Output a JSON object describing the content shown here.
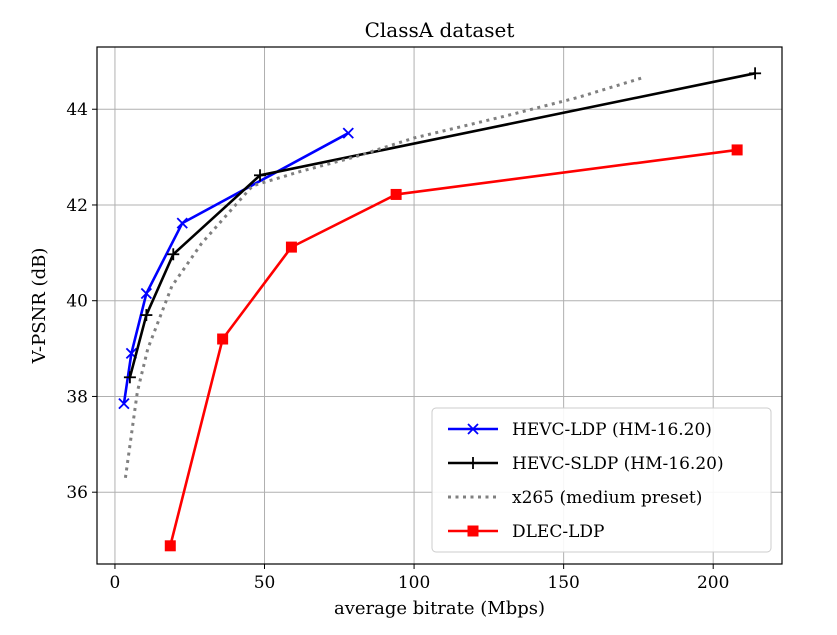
{
  "chart_data": {
    "type": "line",
    "title": "ClassA dataset",
    "xlabel": "average bitrate (Mbps)",
    "ylabel": "V-PSNR (dB)",
    "xlim": [
      -6,
      223
    ],
    "ylim": [
      34.5,
      45.3
    ],
    "xticks": [
      0,
      50,
      100,
      150,
      200
    ],
    "yticks": [
      36,
      38,
      40,
      42,
      44
    ],
    "grid": true,
    "legend_position": "lower-right",
    "series": [
      {
        "name": "HEVC-LDP (HM-16.20)",
        "color": "#0000ff",
        "line_style": "solid",
        "marker": "x",
        "x": [
          3,
          5.5,
          10.5,
          22.5,
          78
        ],
        "y": [
          37.85,
          38.9,
          40.15,
          41.62,
          43.5
        ]
      },
      {
        "name": "HEVC-SLDP (HM-16.20)",
        "color": "#000000",
        "line_style": "solid",
        "marker": "+",
        "x": [
          5,
          10.5,
          19.5,
          48.5,
          214
        ],
        "y": [
          38.4,
          39.7,
          40.97,
          42.62,
          44.75
        ]
      },
      {
        "name": "x265 (medium preset)",
        "color": "#808080",
        "line_style": "dotted",
        "marker": "none",
        "x": [
          3.5,
          7.5,
          11,
          19,
          29,
          46,
          62,
          80,
          100,
          130,
          155,
          176
        ],
        "y": [
          36.3,
          38.1,
          39.0,
          40.3,
          41.2,
          42.4,
          42.7,
          43.0,
          43.4,
          43.85,
          44.25,
          44.65
        ]
      },
      {
        "name": "DLEC-LDP",
        "color": "#ff0000",
        "line_style": "solid",
        "marker": "square",
        "x": [
          18.5,
          36,
          59,
          94,
          208
        ],
        "y": [
          34.88,
          39.2,
          41.12,
          42.22,
          43.15
        ]
      }
    ]
  }
}
